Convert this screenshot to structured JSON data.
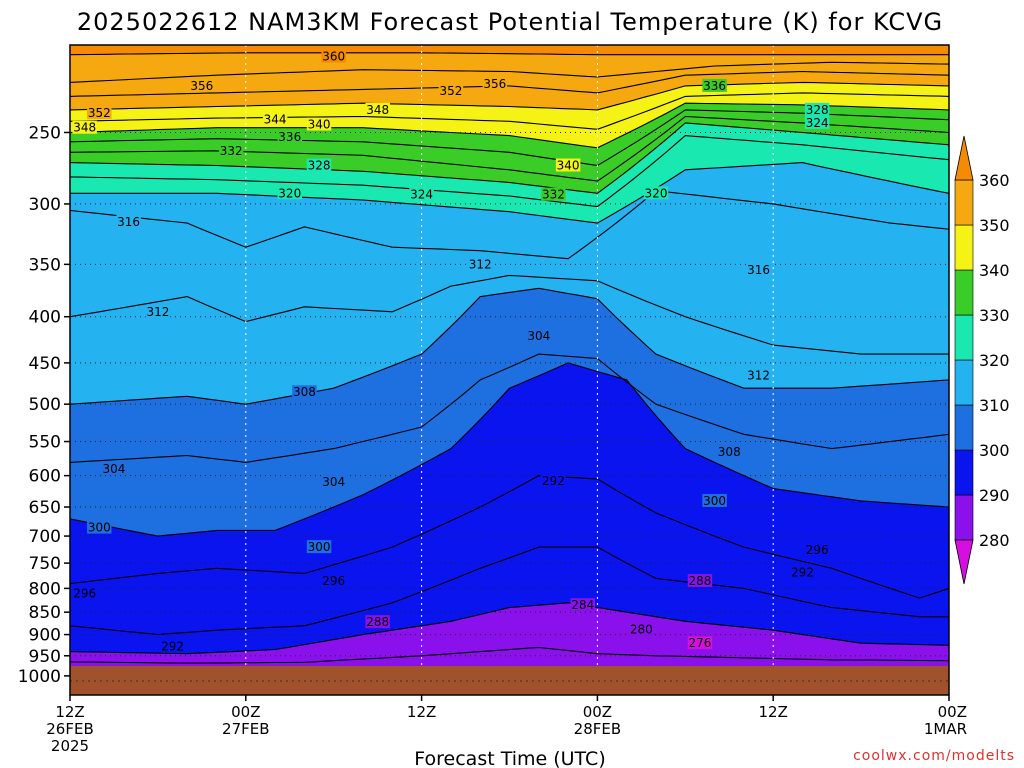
{
  "chart_data": {
    "type": "heatmap",
    "title": "2025022612 NAM3KM Forecast Potential Temperature (K) for KCVG",
    "xlabel": "Forecast Time (UTC)",
    "ylabel": "",
    "credit": "coolwx.com/modelts",
    "x_ticks": [
      {
        "hours": 0,
        "line1": "12Z",
        "line2": "26FEB",
        "line3": "2025"
      },
      {
        "hours": 12,
        "line1": "00Z",
        "line2": "27FEB",
        "line3": ""
      },
      {
        "hours": 24,
        "line1": "12Z",
        "line2": "",
        "line3": ""
      },
      {
        "hours": 36,
        "line1": "00Z",
        "line2": "28FEB",
        "line3": ""
      },
      {
        "hours": 48,
        "line1": "12Z",
        "line2": "",
        "line3": ""
      },
      {
        "hours": 60,
        "line1": "00Z",
        "line2": "1MAR",
        "line3": ""
      }
    ],
    "x_range_hours": [
      0,
      60
    ],
    "y_scale": "log-pressure",
    "y_range_hPa": [
      1050,
      200
    ],
    "y_ticks": [
      250,
      300,
      350,
      400,
      450,
      500,
      550,
      600,
      650,
      700,
      750,
      800,
      850,
      900,
      950,
      1000
    ],
    "surface_pressure_hPa": 975,
    "colorbar": {
      "levels": [
        280,
        290,
        300,
        310,
        320,
        330,
        340,
        350,
        360
      ],
      "colors": [
        "#d60ee0",
        "#8a10ec",
        "#0a14ee",
        "#1e6fe0",
        "#25b2f0",
        "#19e8b0",
        "#3acd28",
        "#f5f216",
        "#f5a810",
        "#f58a05"
      ]
    },
    "isentropes": [
      {
        "theta": 360,
        "points": [
          [
            0,
            205
          ],
          [
            12,
            204
          ],
          [
            24,
            204
          ],
          [
            36,
            205
          ],
          [
            48,
            205
          ],
          [
            60,
            205
          ]
        ]
      },
      {
        "theta": 356,
        "points": [
          [
            0,
            220
          ],
          [
            10,
            216
          ],
          [
            20,
            213
          ],
          [
            30,
            214
          ],
          [
            36,
            217
          ],
          [
            44,
            211
          ],
          [
            52,
            209
          ],
          [
            60,
            210
          ]
        ]
      },
      {
        "theta": 352,
        "points": [
          [
            0,
            228
          ],
          [
            10,
            226
          ],
          [
            20,
            224
          ],
          [
            30,
            222
          ],
          [
            36,
            226
          ],
          [
            42,
            216
          ],
          [
            50,
            214
          ],
          [
            60,
            216
          ]
        ]
      },
      {
        "theta": 348,
        "points": [
          [
            0,
            236
          ],
          [
            10,
            234
          ],
          [
            20,
            232
          ],
          [
            30,
            234
          ],
          [
            36,
            236
          ],
          [
            42,
            222
          ],
          [
            50,
            220
          ],
          [
            60,
            222
          ]
        ]
      },
      {
        "theta": 344,
        "points": [
          [
            0,
            243
          ],
          [
            10,
            241
          ],
          [
            20,
            240
          ],
          [
            30,
            243
          ],
          [
            36,
            248
          ],
          [
            42,
            228
          ],
          [
            50,
            226
          ],
          [
            60,
            228
          ]
        ]
      },
      {
        "theta": 340,
        "points": [
          [
            0,
            250
          ],
          [
            10,
            247
          ],
          [
            20,
            247
          ],
          [
            30,
            252
          ],
          [
            36,
            260
          ],
          [
            42,
            232
          ],
          [
            50,
            233
          ],
          [
            60,
            236
          ]
        ]
      },
      {
        "theta": 336,
        "points": [
          [
            0,
            256
          ],
          [
            10,
            254
          ],
          [
            20,
            256
          ],
          [
            30,
            263
          ],
          [
            36,
            272
          ],
          [
            42,
            236
          ],
          [
            50,
            238
          ],
          [
            60,
            242
          ]
        ]
      },
      {
        "theta": 332,
        "points": [
          [
            0,
            263
          ],
          [
            10,
            262
          ],
          [
            20,
            265
          ],
          [
            30,
            275
          ],
          [
            36,
            283
          ],
          [
            42,
            240
          ],
          [
            50,
            244
          ],
          [
            60,
            250
          ]
        ]
      },
      {
        "theta": 328,
        "points": [
          [
            0,
            270
          ],
          [
            10,
            272
          ],
          [
            20,
            276
          ],
          [
            30,
            284
          ],
          [
            36,
            292
          ],
          [
            42,
            244
          ],
          [
            50,
            250
          ],
          [
            60,
            258
          ]
        ]
      },
      {
        "theta": 324,
        "points": [
          [
            0,
            280
          ],
          [
            10,
            282
          ],
          [
            20,
            286
          ],
          [
            30,
            294
          ],
          [
            36,
            302
          ],
          [
            42,
            252
          ],
          [
            50,
            258
          ],
          [
            60,
            268
          ]
        ]
      },
      {
        "theta": 320,
        "points": [
          [
            0,
            292
          ],
          [
            10,
            292
          ],
          [
            20,
            297
          ],
          [
            30,
            306
          ],
          [
            36,
            315
          ],
          [
            42,
            275
          ],
          [
            50,
            270
          ],
          [
            60,
            292
          ]
        ]
      },
      {
        "theta": 316,
        "points": [
          [
            0,
            305
          ],
          [
            8,
            315
          ],
          [
            12,
            335
          ],
          [
            16,
            318
          ],
          [
            22,
            335
          ],
          [
            28,
            338
          ],
          [
            34,
            345
          ],
          [
            40,
            290
          ],
          [
            48,
            300
          ],
          [
            56,
            315
          ],
          [
            60,
            320
          ]
        ]
      },
      {
        "theta": 312,
        "points": [
          [
            0,
            400
          ],
          [
            8,
            380
          ],
          [
            12,
            405
          ],
          [
            16,
            390
          ],
          [
            22,
            395
          ],
          [
            26,
            370
          ],
          [
            30,
            360
          ],
          [
            36,
            365
          ],
          [
            42,
            400
          ],
          [
            48,
            430
          ],
          [
            54,
            440
          ],
          [
            60,
            440
          ]
        ]
      },
      {
        "theta": 308,
        "points": [
          [
            0,
            500
          ],
          [
            8,
            490
          ],
          [
            12,
            500
          ],
          [
            18,
            480
          ],
          [
            24,
            440
          ],
          [
            28,
            380
          ],
          [
            32,
            372
          ],
          [
            36,
            382
          ],
          [
            40,
            440
          ],
          [
            46,
            480
          ],
          [
            52,
            480
          ],
          [
            60,
            470
          ]
        ]
      },
      {
        "theta": 304,
        "points": [
          [
            0,
            580
          ],
          [
            8,
            570
          ],
          [
            12,
            580
          ],
          [
            18,
            560
          ],
          [
            24,
            530
          ],
          [
            28,
            470
          ],
          [
            32,
            440
          ],
          [
            36,
            445
          ],
          [
            40,
            500
          ],
          [
            46,
            540
          ],
          [
            52,
            560
          ],
          [
            60,
            540
          ]
        ]
      },
      {
        "theta": 300,
        "points": [
          [
            0,
            670
          ],
          [
            6,
            700
          ],
          [
            10,
            690
          ],
          [
            14,
            690
          ],
          [
            20,
            630
          ],
          [
            26,
            560
          ],
          [
            30,
            480
          ],
          [
            34,
            450
          ],
          [
            38,
            470
          ],
          [
            42,
            560
          ],
          [
            48,
            620
          ],
          [
            54,
            640
          ],
          [
            60,
            650
          ]
        ]
      },
      {
        "theta": 296,
        "points": [
          [
            0,
            790
          ],
          [
            6,
            770
          ],
          [
            10,
            760
          ],
          [
            16,
            770
          ],
          [
            22,
            720
          ],
          [
            28,
            650
          ],
          [
            32,
            600
          ],
          [
            36,
            605
          ],
          [
            40,
            660
          ],
          [
            46,
            720
          ],
          [
            52,
            760
          ],
          [
            58,
            820
          ],
          [
            60,
            800
          ]
        ]
      },
      {
        "theta": 292,
        "points": [
          [
            0,
            880
          ],
          [
            6,
            900
          ],
          [
            10,
            890
          ],
          [
            16,
            880
          ],
          [
            22,
            830
          ],
          [
            28,
            760
          ],
          [
            32,
            720
          ],
          [
            36,
            720
          ],
          [
            40,
            780
          ],
          [
            46,
            800
          ],
          [
            52,
            840
          ],
          [
            58,
            860
          ],
          [
            60,
            860
          ]
        ]
      },
      {
        "theta": 288,
        "points": [
          [
            0,
            940
          ],
          [
            8,
            945
          ],
          [
            14,
            935
          ],
          [
            20,
            900
          ],
          [
            26,
            870
          ],
          [
            30,
            840
          ],
          [
            34,
            830
          ],
          [
            38,
            850
          ],
          [
            42,
            870
          ],
          [
            48,
            890
          ],
          [
            54,
            920
          ],
          [
            60,
            925
          ]
        ]
      },
      {
        "theta": 284,
        "points": [
          [
            0,
            965
          ],
          [
            8,
            968
          ],
          [
            16,
            966
          ],
          [
            24,
            950
          ],
          [
            28,
            940
          ],
          [
            32,
            930
          ],
          [
            36,
            945
          ],
          [
            40,
            950
          ],
          [
            46,
            955
          ],
          [
            52,
            960
          ],
          [
            60,
            962
          ]
        ]
      }
    ],
    "contour_labels": [
      {
        "text": "360",
        "hours": 18,
        "hPa": 206
      },
      {
        "text": "356",
        "hours": 9,
        "hPa": 222
      },
      {
        "text": "352",
        "hours": 26,
        "hPa": 225
      },
      {
        "text": "356",
        "hours": 29,
        "hPa": 221
      },
      {
        "text": "348",
        "hours": 21,
        "hPa": 236
      },
      {
        "text": "352",
        "hours": 2,
        "hPa": 238
      },
      {
        "text": "348",
        "hours": 1,
        "hPa": 247
      },
      {
        "text": "344",
        "hours": 14,
        "hPa": 242
      },
      {
        "text": "340",
        "hours": 17,
        "hPa": 245
      },
      {
        "text": "336",
        "hours": 15,
        "hPa": 253
      },
      {
        "text": "332",
        "hours": 11,
        "hPa": 262
      },
      {
        "text": "328",
        "hours": 17,
        "hPa": 272
      },
      {
        "text": "340",
        "hours": 34,
        "hPa": 272
      },
      {
        "text": "336",
        "hours": 44,
        "hPa": 222
      },
      {
        "text": "328",
        "hours": 51,
        "hPa": 236
      },
      {
        "text": "324",
        "hours": 51,
        "hPa": 244
      },
      {
        "text": "320",
        "hours": 15,
        "hPa": 292
      },
      {
        "text": "324",
        "hours": 24,
        "hPa": 293
      },
      {
        "text": "332",
        "hours": 33,
        "hPa": 293
      },
      {
        "text": "320",
        "hours": 40,
        "hPa": 292
      },
      {
        "text": "316",
        "hours": 4,
        "hPa": 314
      },
      {
        "text": "312",
        "hours": 28,
        "hPa": 350
      },
      {
        "text": "316",
        "hours": 47,
        "hPa": 355
      },
      {
        "text": "312",
        "hours": 6,
        "hPa": 395
      },
      {
        "text": "304",
        "hours": 32,
        "hPa": 420
      },
      {
        "text": "312",
        "hours": 47,
        "hPa": 465
      },
      {
        "text": "308",
        "hours": 16,
        "hPa": 485
      },
      {
        "text": "308",
        "hours": 45,
        "hPa": 565
      },
      {
        "text": "304",
        "hours": 3,
        "hPa": 590
      },
      {
        "text": "304",
        "hours": 18,
        "hPa": 610
      },
      {
        "text": "292",
        "hours": 33,
        "hPa": 608
      },
      {
        "text": "300",
        "hours": 44,
        "hPa": 640
      },
      {
        "text": "300",
        "hours": 2,
        "hPa": 685
      },
      {
        "text": "300",
        "hours": 17,
        "hPa": 720
      },
      {
        "text": "296",
        "hours": 51,
        "hPa": 725
      },
      {
        "text": "292",
        "hours": 50,
        "hPa": 768
      },
      {
        "text": "296",
        "hours": 18,
        "hPa": 785
      },
      {
        "text": "288",
        "hours": 43,
        "hPa": 785
      },
      {
        "text": "296",
        "hours": 1,
        "hPa": 810
      },
      {
        "text": "284",
        "hours": 35,
        "hPa": 835
      },
      {
        "text": "288",
        "hours": 21,
        "hPa": 872
      },
      {
        "text": "280",
        "hours": 39,
        "hPa": 888
      },
      {
        "text": "276",
        "hours": 43,
        "hPa": 920
      },
      {
        "text": "292",
        "hours": 7,
        "hPa": 928
      }
    ]
  }
}
